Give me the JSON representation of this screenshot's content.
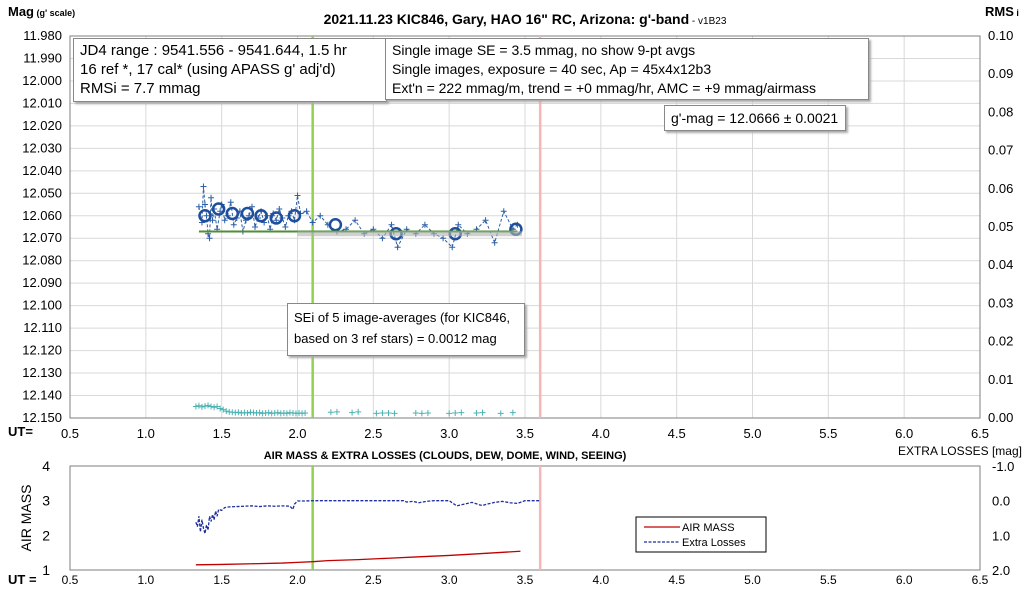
{
  "chart_data": [
    {
      "type": "scatter",
      "title": "2021.11.23 KIC846, Gary, HAO 16\" RC, Arizona: g'-band",
      "title_suffix": "- v1B23",
      "ylabel": "Mag",
      "ylabel_note": "(g' scale)",
      "y2label": "RMS",
      "y2label_note": "i",
      "xlabel": "UT=",
      "xlim": [
        0.5,
        6.5
      ],
      "x_ticks": [
        "0.5",
        "1.0",
        "1.5",
        "2.0",
        "2.5",
        "3.0",
        "3.5",
        "4.0",
        "4.5",
        "5.0",
        "5.5",
        "6.0",
        "6.5"
      ],
      "ylim": [
        11.98,
        12.15
      ],
      "y_inverted": true,
      "y_ticks": [
        "11.980",
        "11.990",
        "12.000",
        "12.010",
        "12.020",
        "12.030",
        "12.040",
        "12.050",
        "12.060",
        "12.070",
        "12.080",
        "12.090",
        "12.100",
        "12.110",
        "12.120",
        "12.130",
        "12.140",
        "12.150"
      ],
      "y2lim": [
        0.0,
        0.1
      ],
      "y2_ticks": [
        "0.10",
        "0.09",
        "0.08",
        "0.07",
        "0.06",
        "0.05",
        "0.04",
        "0.03",
        "0.02",
        "0.01",
        "0.00"
      ],
      "grid": true,
      "vlines": [
        {
          "x": 2.1,
          "color": "#92d050"
        },
        {
          "x": 3.6,
          "color": "#f4b6b6"
        }
      ],
      "series": [
        {
          "color": "#2e5fa8",
          "marker": "plus",
          "dashed": true,
          "x": [
            1.35,
            1.37,
            1.38,
            1.39,
            1.4,
            1.41,
            1.42,
            1.43,
            1.44,
            1.45,
            1.47,
            1.49,
            1.5,
            1.52,
            1.54,
            1.56,
            1.58,
            1.6,
            1.62,
            1.64,
            1.66,
            1.68,
            1.7,
            1.72,
            1.74,
            1.76,
            1.78,
            1.8,
            1.82,
            1.84,
            1.86,
            1.88,
            1.9,
            1.92,
            1.94,
            1.96,
            1.98,
            2.0,
            2.02,
            2.06,
            2.1,
            2.15,
            2.2,
            2.26,
            2.32,
            2.38,
            2.44,
            2.5,
            2.56,
            2.62,
            2.66,
            2.72,
            2.78,
            2.84,
            2.9,
            2.96,
            3.02,
            3.06,
            3.12,
            3.18,
            3.24,
            3.3,
            3.36,
            3.42,
            3.45
          ],
          "y": [
            12.056,
            12.063,
            12.047,
            12.055,
            12.06,
            12.068,
            12.07,
            12.052,
            12.062,
            12.057,
            12.066,
            12.058,
            12.055,
            12.062,
            12.06,
            12.054,
            12.064,
            12.061,
            12.058,
            12.067,
            12.062,
            12.06,
            12.056,
            12.065,
            12.061,
            12.058,
            12.063,
            12.06,
            12.066,
            12.059,
            12.062,
            12.057,
            12.061,
            12.065,
            12.06,
            12.058,
            12.062,
            12.051,
            12.059,
            12.058,
            12.063,
            12.06,
            12.064,
            12.067,
            12.066,
            12.062,
            12.068,
            12.066,
            12.07,
            12.064,
            12.074,
            12.066,
            12.068,
            12.064,
            12.068,
            12.07,
            12.074,
            12.064,
            12.068,
            12.066,
            12.062,
            12.072,
            12.058,
            12.066,
            12.064
          ]
        },
        {
          "color": "#1f4e9c",
          "marker": "circle",
          "x": [
            1.39,
            1.48,
            1.57,
            1.67,
            1.76,
            1.86,
            1.98,
            2.25,
            2.65,
            3.04,
            3.44
          ],
          "y": [
            12.06,
            12.057,
            12.059,
            12.059,
            12.06,
            12.061,
            12.06,
            12.064,
            12.068,
            12.068,
            12.066
          ]
        },
        {
          "color": "#4f8e3a",
          "type": "line",
          "x": [
            1.35,
            3.45
          ],
          "y": [
            12.067,
            12.067
          ]
        },
        {
          "color": "#b0b0b0",
          "type": "line",
          "x": [
            2.0,
            3.48
          ],
          "y": [
            12.068,
            12.068
          ]
        },
        {
          "color": "#4eb3b3",
          "marker": "plus",
          "axis": "y2",
          "x": [
            1.33,
            1.35,
            1.37,
            1.39,
            1.41,
            1.43,
            1.45,
            1.47,
            1.49,
            1.51,
            1.53,
            1.55,
            1.57,
            1.59,
            1.61,
            1.63,
            1.65,
            1.67,
            1.69,
            1.71,
            1.73,
            1.75,
            1.77,
            1.79,
            1.81,
            1.83,
            1.85,
            1.87,
            1.89,
            1.91,
            1.93,
            1.95,
            1.97,
            1.99,
            2.01,
            2.03,
            2.05,
            2.22,
            2.26,
            2.36,
            2.4,
            2.52,
            2.56,
            2.6,
            2.64,
            2.78,
            2.82,
            2.86,
            3.0,
            3.04,
            3.08,
            3.18,
            3.22,
            3.34,
            3.42
          ],
          "y": [
            0.003,
            0.0032,
            0.0029,
            0.0031,
            0.0033,
            0.003,
            0.0028,
            0.003,
            0.0025,
            0.0022,
            0.0018,
            0.0016,
            0.0015,
            0.0014,
            0.0015,
            0.0013,
            0.0014,
            0.0013,
            0.0015,
            0.0014,
            0.0013,
            0.0014,
            0.0012,
            0.0013,
            0.0014,
            0.0012,
            0.0013,
            0.0014,
            0.0012,
            0.0013,
            0.0012,
            0.0014,
            0.0013,
            0.0012,
            0.0013,
            0.0012,
            0.0013,
            0.0015,
            0.0016,
            0.0014,
            0.0016,
            0.0012,
            0.0013,
            0.0013,
            0.0012,
            0.0013,
            0.0012,
            0.0013,
            0.0012,
            0.0013,
            0.0014,
            0.0013,
            0.0014,
            0.0012,
            0.0014
          ]
        }
      ]
    },
    {
      "type": "line",
      "title": "AIR MASS & EXTRA LOSSES (CLOUDS, DEW, DOME, WIND, SEEING)",
      "ylabel": "AIR MASS",
      "y2label": "EXTRA LOSSES [mag]",
      "xlabel": "UT =",
      "xlim": [
        0.5,
        6.5
      ],
      "x_ticks": [
        "0.5",
        "1.0",
        "1.5",
        "2.0",
        "2.5",
        "3.0",
        "3.5",
        "4.0",
        "4.5",
        "5.0",
        "5.5",
        "6.0",
        "6.5"
      ],
      "ylim": [
        1,
        4
      ],
      "y_ticks": [
        "1",
        "2",
        "3",
        "4"
      ],
      "y2lim": [
        2.0,
        -1.0
      ],
      "y2_ticks": [
        "-1.0",
        "0.0",
        "1.0",
        "2.0"
      ],
      "legend_position": "right-center",
      "vlines": [
        {
          "x": 2.1,
          "color": "#92d050"
        },
        {
          "x": 3.6,
          "color": "#f4b6b6"
        }
      ],
      "series": [
        {
          "name": "AIR MASS",
          "color": "#c00000",
          "axis": "y",
          "x": [
            1.33,
            1.5,
            1.7,
            1.9,
            2.0,
            2.1,
            2.2,
            2.4,
            2.6,
            2.8,
            3.0,
            3.2,
            3.47
          ],
          "y": [
            1.15,
            1.16,
            1.18,
            1.2,
            1.22,
            1.24,
            1.27,
            1.3,
            1.34,
            1.38,
            1.42,
            1.47,
            1.54
          ]
        },
        {
          "name": "Extra Losses",
          "color": "#1f2f9c",
          "dashed": true,
          "axis": "y2",
          "x": [
            1.33,
            1.34,
            1.35,
            1.36,
            1.37,
            1.38,
            1.39,
            1.4,
            1.41,
            1.42,
            1.43,
            1.44,
            1.45,
            1.46,
            1.47,
            1.48,
            1.5,
            1.52,
            1.55,
            1.6,
            1.65,
            1.7,
            1.75,
            1.8,
            1.85,
            1.9,
            1.95,
            1.97,
            1.98,
            2.0,
            2.05,
            2.1,
            2.2,
            2.4,
            2.6,
            2.7,
            2.72,
            2.76,
            2.8,
            2.85,
            2.9,
            3.0,
            3.05,
            3.1,
            3.15,
            3.2,
            3.22,
            3.25,
            3.3,
            3.35,
            3.4,
            3.45,
            3.5,
            3.6
          ],
          "y": [
            0.62,
            0.75,
            0.45,
            0.9,
            0.55,
            0.8,
            0.95,
            0.7,
            0.85,
            0.45,
            0.6,
            0.4,
            0.55,
            0.3,
            0.45,
            0.25,
            0.28,
            0.2,
            0.18,
            0.17,
            0.16,
            0.15,
            0.17,
            0.15,
            0.16,
            0.15,
            0.16,
            0.25,
            0.1,
            0.01,
            0.01,
            0.0,
            0.0,
            0.0,
            0.0,
            0.0,
            0.04,
            0.02,
            0.06,
            0.02,
            0.0,
            0.0,
            0.15,
            0.1,
            0.05,
            0.12,
            0.14,
            0.1,
            0.05,
            0.02,
            0.06,
            0.08,
            0.0,
            0.0
          ]
        }
      ]
    }
  ],
  "annotations": {
    "box1": [
      "JD4 range : 9541.556 - 9541.644,  1.5  hr",
      "16 ref *, 17 cal* (using APASS g' adj'd)",
      "RMSi = 7.7 mmag"
    ],
    "box2": [
      "Single image SE = 3.5 mmag, no show  9-pt avgs",
      "Single images, exposure = 40 sec, Ap = 45x4x12b3",
      "Ext'n = 222 mmag/m, trend = +0 mmag/hr, AMC = +9 mmag/airmass"
    ],
    "box3": "g'-mag = 12.0666 ± 0.0021",
    "box4": [
      "SEi of 5 image-averages (for KIC846,",
      "based on 3 ref stars) = 0.0012 mag"
    ]
  }
}
